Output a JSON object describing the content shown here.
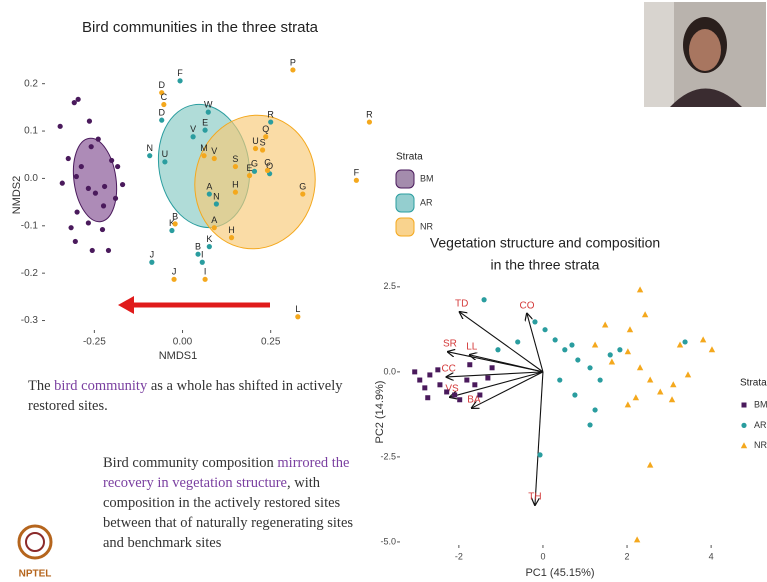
{
  "chart_data": [
    {
      "type": "scatter",
      "title": "Bird communities in the three strata",
      "x_label": "NMDS1",
      "y_label": "NMDS2",
      "xlim": [
        -0.39,
        0.56
      ],
      "ylim": [
        -0.32,
        0.25
      ],
      "xticks": [
        -0.25,
        {
          "value": 0,
          "label": "0.00"
        },
        0.25
      ],
      "yticks": [
        0.2,
        0.1,
        {
          "value": 0,
          "label": "0.0"
        },
        -0.1,
        -0.2,
        -0.3
      ],
      "legend_title": "Strata",
      "legend": "right",
      "series": [
        {
          "name": "BM",
          "color": "#4a1a5c",
          "marker": "circle",
          "x": [
            -0.307,
            -0.296,
            -0.347,
            -0.264,
            -0.239,
            -0.259,
            -0.324,
            -0.287,
            -0.201,
            -0.184,
            -0.341,
            -0.301,
            -0.267,
            -0.221,
            -0.224,
            -0.299,
            -0.316,
            -0.267,
            -0.227,
            -0.17,
            -0.19,
            -0.304,
            -0.256,
            -0.21,
            -0.247
          ],
          "y": [
            0.16,
            0.167,
            0.11,
            0.121,
            0.083,
            0.067,
            0.042,
            0.025,
            0.038,
            0.025,
            -0.01,
            0.004,
            -0.021,
            -0.017,
            -0.058,
            -0.071,
            -0.104,
            -0.094,
            -0.108,
            -0.013,
            -0.042,
            -0.133,
            -0.152,
            -0.152,
            -0.031
          ]
        },
        {
          "name": "AR",
          "color": "#2a9d9f",
          "marker": "circle",
          "labels": [
            "F",
            "W",
            "R",
            "E",
            "D",
            "N",
            "U",
            "V",
            "G",
            "O",
            "A",
            "N",
            "K",
            "K",
            "B",
            "I",
            "J"
          ],
          "x": [
            -0.007,
            0.073,
            0.25,
            0.064,
            -0.059,
            -0.093,
            -0.05,
            0.03,
            0.204,
            0.247,
            0.076,
            0.096,
            -0.03,
            0.076,
            0.044,
            0.056,
            -0.087
          ],
          "y": [
            0.206,
            0.14,
            0.119,
            0.102,
            0.123,
            0.048,
            0.035,
            0.088,
            0.015,
            0.01,
            -0.033,
            -0.054,
            -0.11,
            -0.144,
            -0.16,
            -0.177,
            -0.177
          ]
        },
        {
          "name": "NR",
          "color": "#f4a81d",
          "marker": "circle",
          "labels": [
            "P",
            "R",
            "D",
            "C",
            "U",
            "S",
            "Q",
            "M",
            "V",
            "S",
            "E",
            "C",
            "F",
            "G",
            "H",
            "A",
            "H",
            "B",
            "L",
            "J",
            "I"
          ],
          "x": [
            0.313,
            0.53,
            -0.059,
            -0.053,
            0.207,
            0.227,
            0.236,
            0.061,
            0.09,
            0.15,
            0.19,
            0.241,
            0.493,
            0.341,
            0.15,
            0.09,
            0.139,
            -0.021,
            0.327,
            -0.024,
            0.064
          ],
          "y": [
            0.229,
            0.119,
            0.181,
            0.156,
            0.063,
            0.06,
            0.088,
            0.048,
            0.042,
            0.025,
            0.006,
            0.017,
            -0.004,
            -0.033,
            -0.029,
            -0.104,
            -0.125,
            -0.096,
            -0.292,
            -0.213,
            -0.213
          ]
        }
      ]
    },
    {
      "type": "scatter",
      "title": [
        "Vegetation structure and composition",
        "in the three strata"
      ],
      "x_label": "PC1 (45.15%)",
      "y_label": "PC2 (14.9%)",
      "xlim": [
        -3.4,
        4.33
      ],
      "ylim": [
        -5.09,
        2.76
      ],
      "xticks": [
        -2,
        0,
        2,
        4
      ],
      "yticks": [
        2.5,
        {
          "value": 0,
          "label": "0.0"
        },
        -2.5,
        {
          "value": -5,
          "label": "-5.0"
        }
      ],
      "legend_title": "Strata",
      "legend": "right",
      "series": [
        {
          "name": "BM",
          "color": "#4a1a5c",
          "marker": "square",
          "x": [
            -3.05,
            -2.93,
            -2.81,
            -2.69,
            -2.5,
            -2.45,
            -2.29,
            -2.1,
            -1.98,
            -1.81,
            -1.62,
            -1.5,
            -1.31,
            -1.21,
            -2.74,
            -1.74
          ],
          "y": [
            0,
            -0.24,
            -0.47,
            -0.09,
            0.06,
            -0.38,
            -0.59,
            -0.68,
            -0.82,
            -0.24,
            -0.38,
            -0.68,
            -0.18,
            0.12,
            -0.76,
            0.21
          ]
        },
        {
          "name": "AR",
          "color": "#2a9d9f",
          "marker": "circle",
          "x": [
            -1.4,
            -0.6,
            -0.19,
            0.05,
            0.29,
            0.52,
            0.69,
            0.83,
            1.12,
            1.36,
            1.6,
            1.83,
            3.38,
            -0.07,
            1.12,
            1.24,
            0.76,
            0.4,
            -1.07
          ],
          "y": [
            2.12,
            0.88,
            1.47,
            1.24,
            0.94,
            0.65,
            0.79,
            0.35,
            0.12,
            -0.24,
            0.5,
            0.65,
            0.88,
            -2.44,
            -1.56,
            -1.12,
            -0.68,
            -0.24,
            0.65
          ]
        },
        {
          "name": "NR",
          "color": "#f4a81d",
          "marker": "triangle",
          "x": [
            2.31,
            1.48,
            2.07,
            1.24,
            1.64,
            2.02,
            2.31,
            2.55,
            2.79,
            2.21,
            3.1,
            3.45,
            3.07,
            3.81,
            4.02,
            2.02,
            3.26,
            2.55,
            2.24,
            2.43
          ],
          "y": [
            2.41,
            1.38,
            1.24,
            0.79,
            0.29,
            0.59,
            0.12,
            -0.24,
            -0.59,
            -0.76,
            -0.38,
            -0.09,
            -0.82,
            0.94,
            0.65,
            -0.97,
            0.79,
            -2.74,
            -4.94,
            1.68
          ]
        }
      ],
      "vectors": {
        "color": "#d43a3a",
        "labels": [
          "TD",
          "CO",
          "SR",
          "LL",
          "CC",
          "VS",
          "BA",
          "TH"
        ],
        "x": [
          -1.98,
          -0.38,
          -2.26,
          -1.74,
          -2.29,
          -2.21,
          -1.69,
          -0.19
        ],
        "y": [
          1.76,
          1.71,
          0.59,
          0.5,
          -0.15,
          -0.74,
          -1.06,
          -3.91
        ]
      }
    }
  ],
  "text": {
    "p1": [
      "The ",
      "bird community",
      " as a whole has shifted in actively restored sites."
    ],
    "p2": [
      "Bird community composition ",
      "mirrored the recovery in vegetation structure",
      ", with composition in the actively restored sites between that of naturally regenerating sites and benchmark sites"
    ],
    "logo": "NPTEL"
  }
}
